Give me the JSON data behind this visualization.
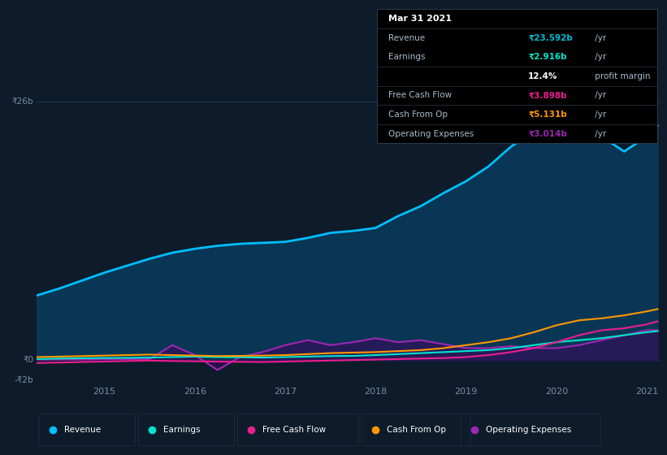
{
  "bg_color": "#0d1b2a",
  "plot_bg_color": "#0d1b2a",
  "revenue": {
    "x": [
      2014.25,
      2014.5,
      2014.75,
      2015.0,
      2015.25,
      2015.5,
      2015.75,
      2016.0,
      2016.25,
      2016.5,
      2016.75,
      2017.0,
      2017.25,
      2017.5,
      2017.75,
      2018.0,
      2018.25,
      2018.5,
      2018.75,
      2019.0,
      2019.25,
      2019.5,
      2019.75,
      2020.0,
      2020.25,
      2020.5,
      2020.75,
      2021.0,
      2021.12
    ],
    "y": [
      6.5,
      7.2,
      8.0,
      8.8,
      9.5,
      10.2,
      10.8,
      11.2,
      11.5,
      11.7,
      11.8,
      11.9,
      12.3,
      12.8,
      13.0,
      13.3,
      14.5,
      15.5,
      16.8,
      18.0,
      19.5,
      21.5,
      23.0,
      24.5,
      24.0,
      22.5,
      21.0,
      22.5,
      23.6
    ],
    "color": "#00bfff",
    "fill_color": "#0a3a5c"
  },
  "earnings": {
    "x": [
      2014.25,
      2014.5,
      2014.75,
      2015.0,
      2015.25,
      2015.5,
      2015.75,
      2016.0,
      2016.25,
      2016.5,
      2016.75,
      2017.0,
      2017.25,
      2017.5,
      2017.75,
      2018.0,
      2018.25,
      2018.5,
      2018.75,
      2019.0,
      2019.25,
      2019.5,
      2019.75,
      2020.0,
      2020.25,
      2020.5,
      2020.75,
      2021.0,
      2021.12
    ],
    "y": [
      0.1,
      0.15,
      0.18,
      0.2,
      0.22,
      0.25,
      0.3,
      0.35,
      0.3,
      0.28,
      0.25,
      0.3,
      0.35,
      0.4,
      0.42,
      0.5,
      0.6,
      0.7,
      0.8,
      0.9,
      1.0,
      1.2,
      1.5,
      1.8,
      2.0,
      2.2,
      2.5,
      2.8,
      2.916
    ],
    "color": "#00e5cc"
  },
  "free_cash_flow": {
    "x": [
      2014.25,
      2014.5,
      2014.75,
      2015.0,
      2015.25,
      2015.5,
      2015.75,
      2016.0,
      2016.25,
      2016.5,
      2016.75,
      2017.0,
      2017.25,
      2017.5,
      2017.75,
      2018.0,
      2018.25,
      2018.5,
      2018.75,
      2019.0,
      2019.25,
      2019.5,
      2019.75,
      2020.0,
      2020.25,
      2020.5,
      2020.75,
      2021.0,
      2021.12
    ],
    "y": [
      -0.3,
      -0.25,
      -0.2,
      -0.15,
      -0.1,
      -0.05,
      -0.1,
      -0.12,
      -0.15,
      -0.18,
      -0.2,
      -0.15,
      -0.1,
      -0.05,
      0.0,
      0.05,
      0.1,
      0.15,
      0.2,
      0.3,
      0.5,
      0.8,
      1.2,
      1.8,
      2.5,
      3.0,
      3.2,
      3.6,
      3.898
    ],
    "color": "#e91e8c"
  },
  "cash_from_op": {
    "x": [
      2014.25,
      2014.5,
      2014.75,
      2015.0,
      2015.25,
      2015.5,
      2015.75,
      2016.0,
      2016.25,
      2016.5,
      2016.75,
      2017.0,
      2017.25,
      2017.5,
      2017.75,
      2018.0,
      2018.25,
      2018.5,
      2018.75,
      2019.0,
      2019.25,
      2019.5,
      2019.75,
      2020.0,
      2020.25,
      2020.5,
      2020.75,
      2021.0,
      2021.12
    ],
    "y": [
      0.3,
      0.35,
      0.4,
      0.45,
      0.5,
      0.55,
      0.5,
      0.45,
      0.4,
      0.42,
      0.45,
      0.5,
      0.6,
      0.7,
      0.75,
      0.8,
      0.9,
      1.0,
      1.2,
      1.5,
      1.8,
      2.2,
      2.8,
      3.5,
      4.0,
      4.2,
      4.5,
      4.9,
      5.131
    ],
    "color": "#ff9800"
  },
  "operating_expenses": {
    "x": [
      2014.25,
      2014.5,
      2014.75,
      2015.0,
      2015.25,
      2015.5,
      2015.75,
      2016.0,
      2016.25,
      2016.5,
      2016.75,
      2017.0,
      2017.25,
      2017.5,
      2017.75,
      2018.0,
      2018.25,
      2018.5,
      2018.75,
      2019.0,
      2019.25,
      2019.5,
      2019.75,
      2020.0,
      2020.25,
      2020.5,
      2020.75,
      2021.0,
      2021.12
    ],
    "y": [
      0.05,
      0.05,
      0.05,
      0.1,
      0.1,
      0.1,
      1.5,
      0.5,
      -1.0,
      0.3,
      0.8,
      1.5,
      2.0,
      1.5,
      1.8,
      2.2,
      1.8,
      2.0,
      1.6,
      1.2,
      1.2,
      1.4,
      1.2,
      1.2,
      1.5,
      2.0,
      2.5,
      3.0,
      3.014
    ],
    "color": "#9c27b0",
    "fill_color": "#3a0a5c"
  },
  "legend": [
    {
      "label": "Revenue",
      "color": "#00bfff"
    },
    {
      "label": "Earnings",
      "color": "#00e5cc"
    },
    {
      "label": "Free Cash Flow",
      "color": "#e91e8c"
    },
    {
      "label": "Cash From Op",
      "color": "#ff9800"
    },
    {
      "label": "Operating Expenses",
      "color": "#9c27b0"
    }
  ],
  "table_rows": [
    {
      "label": "Mar 31 2021",
      "value": "",
      "value_color": "#ffffff",
      "suffix": "",
      "is_header": true
    },
    {
      "label": "Revenue",
      "value": "₹23.592b",
      "value_color": "#00bcd4",
      "suffix": " /yr",
      "is_header": false
    },
    {
      "label": "Earnings",
      "value": "₹2.916b",
      "value_color": "#00e5cc",
      "suffix": " /yr",
      "is_header": false
    },
    {
      "label": "",
      "value": "12.4%",
      "value_color": "#ffffff",
      "suffix": " profit margin",
      "is_header": false
    },
    {
      "label": "Free Cash Flow",
      "value": "₹3.898b",
      "value_color": "#e91e8c",
      "suffix": " /yr",
      "is_header": false
    },
    {
      "label": "Cash From Op",
      "value": "₹5.131b",
      "value_color": "#ff9800",
      "suffix": " /yr",
      "is_header": false
    },
    {
      "label": "Operating Expenses",
      "value": "₹3.014b",
      "value_color": "#9c27b0",
      "suffix": " /yr",
      "is_header": false
    }
  ],
  "divider_after_rows": [
    0,
    2,
    3,
    4,
    5
  ],
  "x_ticks": [
    2015,
    2016,
    2017,
    2018,
    2019,
    2020,
    2021
  ],
  "x_tick_labels": [
    "2015",
    "2016",
    "2017",
    "2018",
    "2019",
    "2020",
    "2021"
  ],
  "xlim": [
    2014.25,
    2021.15
  ],
  "ylim": [
    -2,
    28
  ],
  "y_label_26": "₹26b",
  "y_label_0": "₹0",
  "y_label_m2": "-₹2b",
  "grid_line_color": "#1e3a5a",
  "tick_color": "#7a8fa0",
  "table_bg": "#000000",
  "table_border_color": "#2a3a4a",
  "table_text_color": "#aabbcc",
  "legend_box_color": "#1a2a3a"
}
